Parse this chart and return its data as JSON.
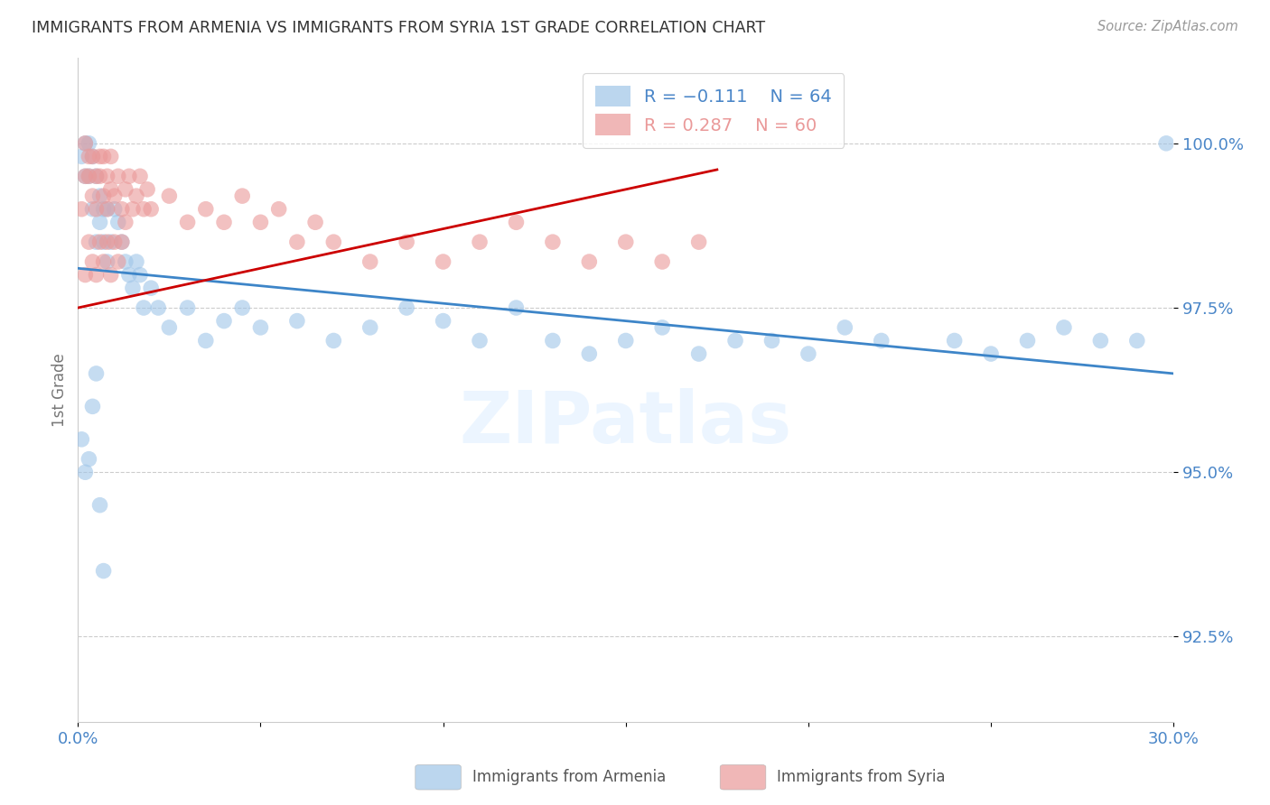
{
  "title": "IMMIGRANTS FROM ARMENIA VS IMMIGRANTS FROM SYRIA 1ST GRADE CORRELATION CHART",
  "source": "Source: ZipAtlas.com",
  "ylabel": "1st Grade",
  "yticks": [
    92.5,
    95.0,
    97.5,
    100.0
  ],
  "ytick_labels": [
    "92.5%",
    "95.0%",
    "97.5%",
    "100.0%"
  ],
  "xlim": [
    0.0,
    0.3
  ],
  "ylim": [
    91.2,
    101.3
  ],
  "legend_r1": "R = −0.111",
  "legend_n1": "N = 64",
  "legend_r2": "R = 0.287",
  "legend_n2": "N = 60",
  "color_armenia": "#9fc5e8",
  "color_syria": "#ea9999",
  "color_line_armenia": "#3d85c8",
  "color_line_syria": "#cc0000",
  "color_axis_text": "#4a86c8",
  "watermark": "ZIPatlas",
  "armenia_line_x": [
    0.0,
    0.3
  ],
  "armenia_line_y": [
    98.1,
    96.5
  ],
  "syria_line_x": [
    0.0,
    0.175
  ],
  "syria_line_y": [
    97.5,
    99.6
  ],
  "armenia_x": [
    0.001,
    0.002,
    0.002,
    0.003,
    0.003,
    0.004,
    0.004,
    0.005,
    0.005,
    0.006,
    0.006,
    0.007,
    0.007,
    0.008,
    0.008,
    0.009,
    0.01,
    0.011,
    0.012,
    0.013,
    0.014,
    0.015,
    0.016,
    0.017,
    0.018,
    0.02,
    0.022,
    0.025,
    0.03,
    0.035,
    0.04,
    0.045,
    0.05,
    0.06,
    0.07,
    0.08,
    0.09,
    0.1,
    0.11,
    0.12,
    0.13,
    0.14,
    0.15,
    0.16,
    0.17,
    0.18,
    0.19,
    0.2,
    0.21,
    0.22,
    0.24,
    0.25,
    0.26,
    0.27,
    0.28,
    0.29,
    0.001,
    0.002,
    0.003,
    0.004,
    0.005,
    0.006,
    0.007,
    0.298
  ],
  "armenia_y": [
    99.8,
    99.5,
    100.0,
    99.5,
    100.0,
    99.8,
    99.0,
    99.5,
    98.5,
    99.2,
    98.8,
    99.0,
    98.5,
    98.2,
    99.0,
    98.5,
    99.0,
    98.8,
    98.5,
    98.2,
    98.0,
    97.8,
    98.2,
    98.0,
    97.5,
    97.8,
    97.5,
    97.2,
    97.5,
    97.0,
    97.3,
    97.5,
    97.2,
    97.3,
    97.0,
    97.2,
    97.5,
    97.3,
    97.0,
    97.5,
    97.0,
    96.8,
    97.0,
    97.2,
    96.8,
    97.0,
    97.0,
    96.8,
    97.2,
    97.0,
    97.0,
    96.8,
    97.0,
    97.2,
    97.0,
    97.0,
    95.5,
    95.0,
    95.2,
    96.0,
    96.5,
    94.5,
    93.5,
    100.0
  ],
  "syria_x": [
    0.001,
    0.002,
    0.002,
    0.003,
    0.003,
    0.004,
    0.004,
    0.005,
    0.005,
    0.006,
    0.006,
    0.007,
    0.007,
    0.008,
    0.008,
    0.009,
    0.009,
    0.01,
    0.011,
    0.012,
    0.013,
    0.014,
    0.015,
    0.016,
    0.017,
    0.018,
    0.019,
    0.02,
    0.025,
    0.03,
    0.035,
    0.04,
    0.045,
    0.05,
    0.055,
    0.06,
    0.065,
    0.07,
    0.08,
    0.09,
    0.1,
    0.11,
    0.12,
    0.13,
    0.14,
    0.15,
    0.16,
    0.17,
    0.002,
    0.003,
    0.004,
    0.005,
    0.006,
    0.007,
    0.008,
    0.009,
    0.01,
    0.011,
    0.012,
    0.013
  ],
  "syria_y": [
    99.0,
    99.5,
    100.0,
    99.8,
    99.5,
    99.2,
    99.8,
    99.5,
    99.0,
    99.8,
    99.5,
    99.2,
    99.8,
    99.5,
    99.0,
    99.3,
    99.8,
    99.2,
    99.5,
    99.0,
    99.3,
    99.5,
    99.0,
    99.2,
    99.5,
    99.0,
    99.3,
    99.0,
    99.2,
    98.8,
    99.0,
    98.8,
    99.2,
    98.8,
    99.0,
    98.5,
    98.8,
    98.5,
    98.2,
    98.5,
    98.2,
    98.5,
    98.8,
    98.5,
    98.2,
    98.5,
    98.2,
    98.5,
    98.0,
    98.5,
    98.2,
    98.0,
    98.5,
    98.2,
    98.5,
    98.0,
    98.5,
    98.2,
    98.5,
    98.8
  ]
}
